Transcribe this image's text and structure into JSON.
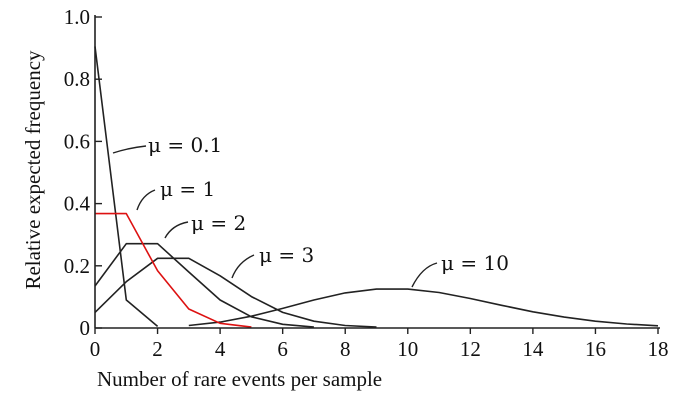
{
  "chart_data": {
    "type": "line",
    "xlabel": "Number of rare events per sample",
    "ylabel": "Relative expected frequency",
    "xlim": [
      0,
      18
    ],
    "ylim": [
      0,
      1.0
    ],
    "x_ticks": [
      0,
      2,
      4,
      6,
      8,
      10,
      12,
      14,
      16,
      18
    ],
    "y_ticks": [
      {
        "value": 0,
        "label": "0"
      },
      {
        "value": 0.2,
        "label": "0.2"
      },
      {
        "value": 0.4,
        "label": "0.4"
      },
      {
        "value": 0.6,
        "label": "0.6"
      },
      {
        "value": 0.8,
        "label": "0.8"
      },
      {
        "value": 1.0,
        "label": "1.0"
      }
    ],
    "grid": false,
    "legend": "none",
    "series": [
      {
        "name": "μ = 0.1",
        "color": "#222222",
        "points": [
          [
            0,
            0.905
          ],
          [
            1,
            0.09
          ],
          [
            2,
            0.005
          ]
        ]
      },
      {
        "name": "μ = 1",
        "color": "#dd1111",
        "points": [
          [
            0,
            0.368
          ],
          [
            1,
            0.368
          ],
          [
            2,
            0.184
          ],
          [
            3,
            0.061
          ],
          [
            4,
            0.015
          ],
          [
            5,
            0.003
          ]
        ]
      },
      {
        "name": "μ = 2",
        "color": "#222222",
        "points": [
          [
            0,
            0.135
          ],
          [
            1,
            0.271
          ],
          [
            2,
            0.271
          ],
          [
            3,
            0.18
          ],
          [
            4,
            0.09
          ],
          [
            5,
            0.036
          ],
          [
            6,
            0.012
          ],
          [
            7,
            0.003
          ]
        ]
      },
      {
        "name": "μ = 3",
        "color": "#222222",
        "points": [
          [
            0,
            0.05
          ],
          [
            1,
            0.149
          ],
          [
            2,
            0.224
          ],
          [
            3,
            0.224
          ],
          [
            4,
            0.168
          ],
          [
            5,
            0.101
          ],
          [
            6,
            0.05
          ],
          [
            7,
            0.022
          ],
          [
            8,
            0.008
          ],
          [
            9,
            0.003
          ]
        ]
      },
      {
        "name": "μ = 10",
        "color": "#222222",
        "points": [
          [
            3,
            0.008
          ],
          [
            4,
            0.019
          ],
          [
            5,
            0.038
          ],
          [
            6,
            0.063
          ],
          [
            7,
            0.09
          ],
          [
            8,
            0.113
          ],
          [
            9,
            0.125
          ],
          [
            10,
            0.125
          ],
          [
            11,
            0.114
          ],
          [
            12,
            0.095
          ],
          [
            13,
            0.073
          ],
          [
            14,
            0.052
          ],
          [
            15,
            0.035
          ],
          [
            16,
            0.022
          ],
          [
            17,
            0.013
          ],
          [
            18,
            0.007
          ]
        ]
      }
    ],
    "annotations": [
      {
        "text": "μ = 0.1",
        "series": "μ = 0.1"
      },
      {
        "text": "μ = 1",
        "series": "μ = 1"
      },
      {
        "text": "μ = 2",
        "series": "μ = 2"
      },
      {
        "text": "μ = 3",
        "series": "μ = 3"
      },
      {
        "text": "μ = 10",
        "series": "μ = 10"
      }
    ]
  }
}
